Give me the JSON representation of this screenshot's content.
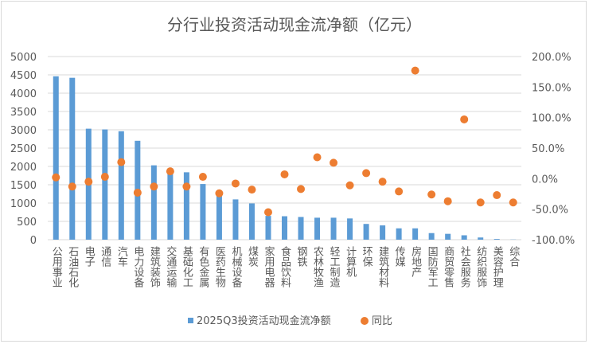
{
  "chart_data": {
    "type": "bar+scatter",
    "title": "分行业投资活动现金流净额（亿元）",
    "categories": [
      "公用事业",
      "石油石化",
      "电子",
      "通信",
      "汽车",
      "电力设备",
      "建筑装饰",
      "交通运输",
      "基础化工",
      "有色金属",
      "医药生物",
      "机械设备",
      "煤炭",
      "家用电器",
      "食品饮料",
      "钢铁",
      "农林牧渔",
      "轻工制造",
      "计算机",
      "环保",
      "建筑材料",
      "传媒",
      "房地产",
      "国防军工",
      "商贸零售",
      "社会服务",
      "纺织服饰",
      "美容护理",
      "综合"
    ],
    "series": [
      {
        "name": "2025Q3投资活动现金流净额",
        "type": "bar",
        "axis": "left",
        "color": "#5b9bd5",
        "values": [
          4460,
          4420,
          3030,
          3010,
          2960,
          2700,
          2030,
          1880,
          1840,
          1520,
          1270,
          1100,
          990,
          650,
          640,
          620,
          600,
          600,
          580,
          430,
          390,
          310,
          310,
          180,
          160,
          120,
          60,
          20,
          5
        ]
      },
      {
        "name": "同比",
        "type": "scatter",
        "axis": "right",
        "color": "#ed7d31",
        "values": [
          2,
          -13,
          -5,
          3,
          27,
          -23,
          -13,
          12,
          -13,
          3,
          -24,
          -8,
          -18,
          -55,
          7,
          -17,
          35,
          26,
          -11,
          9,
          -5,
          -21,
          177,
          -26,
          -37,
          97,
          -39,
          -27,
          -39
        ]
      }
    ],
    "left_axis": {
      "ylim": [
        0,
        5000
      ],
      "ticks": [
        "0",
        "500",
        "1000",
        "1500",
        "2000",
        "2500",
        "3000",
        "3500",
        "4000",
        "4500",
        "5000"
      ]
    },
    "right_axis": {
      "ylim": [
        -100,
        200
      ],
      "ticks": [
        "-100.0%",
        "-50.0%",
        "0.0%",
        "50.0%",
        "100.0%",
        "150.0%",
        "200.0%"
      ]
    },
    "grid": true,
    "legend": "bottom"
  }
}
